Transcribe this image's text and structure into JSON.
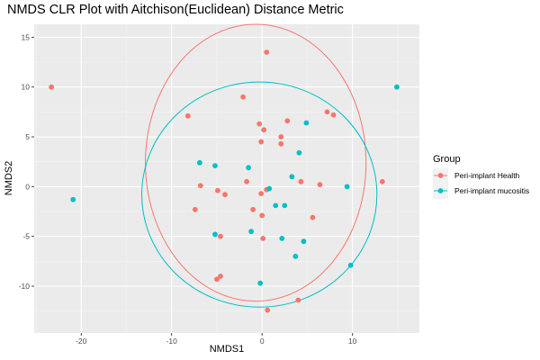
{
  "chart_data": {
    "type": "scatter",
    "title": "NMDS CLR Plot with Aitchison(Euclidean) Distance Metric",
    "xlabel": "NMDS1",
    "ylabel": "NMDS2",
    "xlim": [
      -25.2,
      17.4
    ],
    "ylim": [
      -14.7,
      16.3
    ],
    "x_ticks": [
      -20,
      -10,
      0,
      10
    ],
    "y_ticks": [
      -10,
      -5,
      0,
      5,
      10,
      15
    ],
    "grid": true,
    "background": "#ebebeb",
    "legend": {
      "title": "Group",
      "position": "right"
    },
    "series": [
      {
        "name": "Peri-implant Health",
        "color": "#F8766D",
        "points": [
          {
            "x": -23.3,
            "y": 10.0
          },
          {
            "x": 0.5,
            "y": 13.5
          },
          {
            "x": -2.1,
            "y": 9.0
          },
          {
            "x": -8.2,
            "y": 7.1
          },
          {
            "x": 7.2,
            "y": 7.5
          },
          {
            "x": 7.9,
            "y": 7.2
          },
          {
            "x": 2.8,
            "y": 6.6
          },
          {
            "x": -0.3,
            "y": 6.3
          },
          {
            "x": 0.2,
            "y": 5.7
          },
          {
            "x": 2.1,
            "y": 5.0
          },
          {
            "x": -0.1,
            "y": 4.5
          },
          {
            "x": 2.1,
            "y": 4.3
          },
          {
            "x": -1.7,
            "y": 0.5
          },
          {
            "x": 4.3,
            "y": 0.5
          },
          {
            "x": 6.4,
            "y": 0.2
          },
          {
            "x": 13.3,
            "y": 0.5
          },
          {
            "x": -6.8,
            "y": 0.1
          },
          {
            "x": 0.5,
            "y": -0.3
          },
          {
            "x": -4.9,
            "y": -0.4
          },
          {
            "x": -4.1,
            "y": -0.8
          },
          {
            "x": -0.1,
            "y": -0.7
          },
          {
            "x": -7.4,
            "y": -2.3
          },
          {
            "x": -1.0,
            "y": -2.3
          },
          {
            "x": 0.0,
            "y": -2.9
          },
          {
            "x": 5.6,
            "y": -3.1
          },
          {
            "x": -4.6,
            "y": -5.0
          },
          {
            "x": 0.1,
            "y": -5.2
          },
          {
            "x": -4.6,
            "y": -9.0
          },
          {
            "x": -5.0,
            "y": -9.3
          },
          {
            "x": 4.0,
            "y": -11.4
          },
          {
            "x": 0.6,
            "y": -12.4
          }
        ]
      },
      {
        "name": "Peri-implant mucositis",
        "color": "#00BFC4",
        "points": [
          {
            "x": 14.9,
            "y": 10.0
          },
          {
            "x": 4.9,
            "y": 6.4
          },
          {
            "x": 4.1,
            "y": 3.4
          },
          {
            "x": -6.9,
            "y": 2.4
          },
          {
            "x": -5.2,
            "y": 2.1
          },
          {
            "x": -1.5,
            "y": 1.9
          },
          {
            "x": 3.3,
            "y": 1.0
          },
          {
            "x": 0.8,
            "y": -0.2
          },
          {
            "x": 9.4,
            "y": 0.0
          },
          {
            "x": -20.9,
            "y": -1.3
          },
          {
            "x": 1.5,
            "y": -1.9
          },
          {
            "x": 2.5,
            "y": -1.9
          },
          {
            "x": -5.2,
            "y": -4.8
          },
          {
            "x": -1.2,
            "y": -4.5
          },
          {
            "x": 2.2,
            "y": -5.2
          },
          {
            "x": 4.6,
            "y": -5.5
          },
          {
            "x": 3.7,
            "y": -7.0
          },
          {
            "x": 9.8,
            "y": -7.9
          },
          {
            "x": -0.2,
            "y": -9.7
          }
        ]
      }
    ],
    "ellipses": [
      {
        "series": "Peri-implant Health",
        "center": [
          -0.7,
          2.4
        ],
        "radius": [
          12.2,
          13.9
        ]
      },
      {
        "series": "Peri-implant mucositis",
        "center": [
          -0.3,
          -0.8
        ],
        "radius": [
          13.0,
          11.3
        ]
      }
    ]
  }
}
